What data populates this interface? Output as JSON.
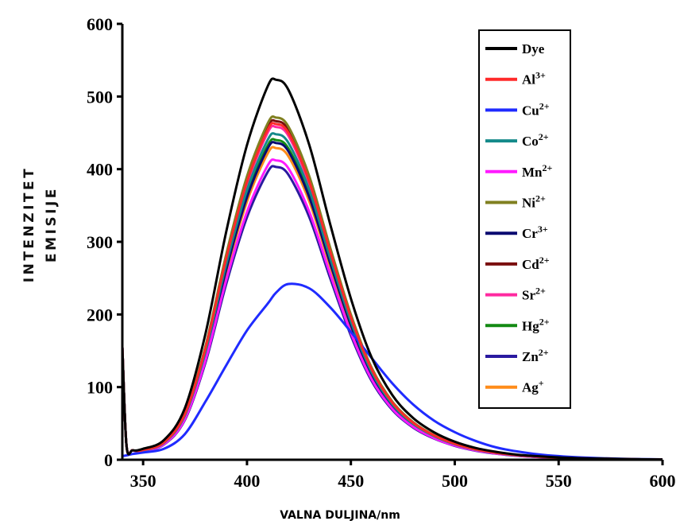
{
  "chart_data": {
    "type": "line",
    "title": "",
    "xlabel": "VALNA DULJINA/nm",
    "ylabel_lines": [
      "INTENZITET",
      "EMISIJE"
    ],
    "xlim": [
      340,
      600
    ],
    "ylim": [
      0,
      600
    ],
    "xticks": [
      "350",
      "400",
      "450",
      "500",
      "550",
      "600"
    ],
    "yticks": [
      "0",
      "100",
      "200",
      "300",
      "400",
      "500",
      "600"
    ],
    "legend_position": "right",
    "x_knots": [
      340,
      342,
      345,
      350,
      360,
      370,
      380,
      390,
      400,
      410,
      414,
      420,
      430,
      440,
      450,
      460,
      470,
      480,
      490,
      500,
      510,
      520,
      530,
      540,
      550,
      560,
      570,
      580,
      590,
      600
    ],
    "series": [
      {
        "name": "Dye",
        "base": "Dye",
        "sup": "",
        "color": "#000000",
        "peak": 523
      },
      {
        "name": "Al3+",
        "base": "Al",
        "sup": "3+",
        "color": "#ff2a2a",
        "peak": 462
      },
      {
        "name": "Cu2+",
        "base": "Cu",
        "sup": "2+",
        "color": "#1f2bff",
        "peak": 242
      },
      {
        "name": "Co2+",
        "base": "Co",
        "sup": "2+",
        "color": "#148a8a",
        "peak": 448
      },
      {
        "name": "Mn2+",
        "base": "Mn",
        "sup": "2+",
        "color": "#ff1aff",
        "peak": 412
      },
      {
        "name": "Ni2+",
        "base": "Ni",
        "sup": "2+",
        "color": "#808020",
        "peak": 471
      },
      {
        "name": "Cr3+",
        "base": "Cr",
        "sup": "3+",
        "color": "#0a0a70",
        "peak": 436
      },
      {
        "name": "Cd2+",
        "base": "Cd",
        "sup": "2+",
        "color": "#7a0e0e",
        "peak": 466
      },
      {
        "name": "Sr2+",
        "base": "Sr",
        "sup": "2+",
        "color": "#ff2aa0",
        "peak": 458
      },
      {
        "name": "Hg2+",
        "base": "Hg",
        "sup": "2+",
        "color": "#138a13",
        "peak": 440
      },
      {
        "name": "Zn2+",
        "base": "Zn",
        "sup": "2+",
        "color": "#2a1aa0",
        "peak": 403
      },
      {
        "name": "Ag+",
        "base": "Ag",
        "sup": "+",
        "color": "#ff8c1a",
        "peak": 429
      }
    ],
    "shape_main": [
      155,
      20,
      13,
      14,
      25,
      65,
      160,
      290,
      400,
      475,
      483,
      470,
      400,
      300,
      205,
      130,
      82,
      53,
      35,
      23,
      15,
      10,
      6.5,
      4.5,
      3,
      2,
      1.5,
      1,
      0.6,
      0.4
    ],
    "shape_cu": [
      5,
      6,
      8,
      10,
      15,
      35,
      80,
      130,
      178,
      215,
      230,
      242,
      236,
      210,
      176,
      140,
      105,
      76,
      54,
      38,
      26,
      17,
      11.5,
      7.5,
      5,
      3.3,
      2.2,
      1.4,
      0.9,
      0.6
    ]
  }
}
